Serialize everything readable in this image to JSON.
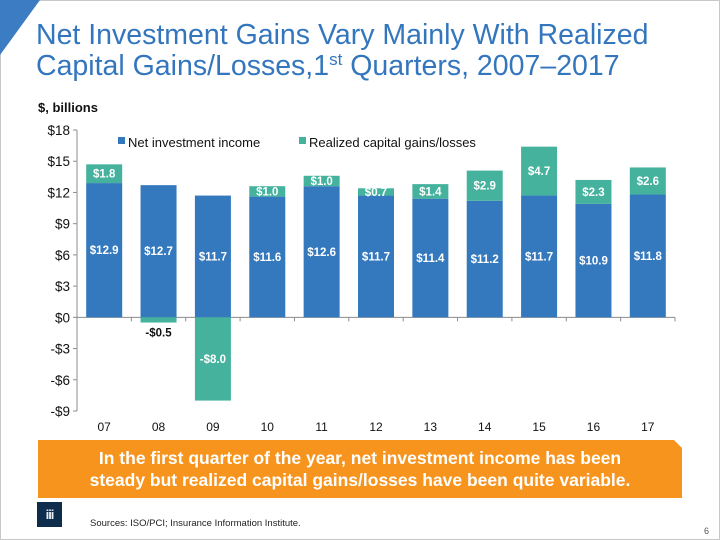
{
  "slide": {
    "title_line1": "Net Investment Gains Vary Mainly With Realized",
    "title_line2_pre": "Capital Gains/Losses,1",
    "title_line2_sup": "st",
    "title_line2_post": " Quarters, 2007–2017",
    "units_label": "$, billions",
    "callout_line1": "In the first quarter of the year, net investment income has been",
    "callout_line2": "steady but realized capital gains/losses have been quite variable.",
    "sources": "Sources: ISO/PCI;  Insurance Information Institute.",
    "page_number": "6",
    "logo_text": "iii",
    "colors": {
      "title": "#3476bd",
      "net_investment_income": "#3479be",
      "realized_gains": "#45b29d",
      "callout": "#f7941d",
      "logo_bg": "#0e2d4c"
    }
  },
  "chart_data": {
    "type": "bar",
    "stacked": true,
    "title": "",
    "xlabel": "",
    "ylabel": "$, billions",
    "categories": [
      "07",
      "08",
      "09",
      "10",
      "11",
      "12",
      "13",
      "14",
      "15",
      "16",
      "17"
    ],
    "series": [
      {
        "name": "Net investment income",
        "values": [
          12.9,
          12.7,
          11.7,
          11.6,
          12.6,
          11.7,
          11.4,
          11.2,
          11.7,
          10.9,
          11.8
        ],
        "labels": [
          "$12.9",
          "$12.7",
          "$11.7",
          "$11.6",
          "$12.6",
          "$11.7",
          "$11.4",
          "$11.2",
          "$11.7",
          "$10.9",
          "$11.8"
        ]
      },
      {
        "name": "Realized capital gains/losses",
        "values": [
          1.8,
          -0.5,
          -8.0,
          1.0,
          1.0,
          0.7,
          1.4,
          2.9,
          4.7,
          2.3,
          2.6
        ],
        "labels": [
          "$1.8",
          "-$0.5",
          "-$8.0",
          "$1.0",
          "$1.0",
          "$0.7",
          "$1.4",
          "$2.9",
          "$4.7",
          "$2.3",
          "$2.6"
        ]
      }
    ],
    "ylim": [
      -9,
      18
    ],
    "yticks": [
      18,
      15,
      12,
      9,
      6,
      3,
      0,
      -3,
      -6,
      -9
    ],
    "ytick_labels": [
      "$18",
      "$15",
      "$12",
      "$9",
      "$6",
      "$3",
      "$0",
      "-$3",
      "-$6",
      "-$9"
    ],
    "grid": false,
    "legend": "top-center"
  }
}
